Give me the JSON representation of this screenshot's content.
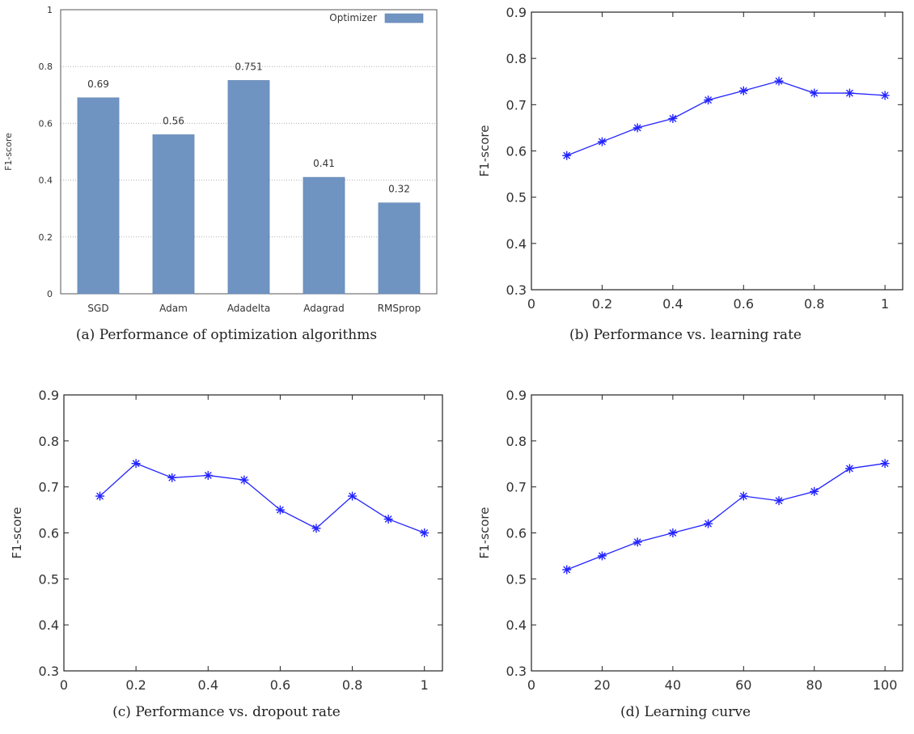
{
  "panels": [
    {
      "caption": "(a) Performance of optimization algorithms"
    },
    {
      "caption": "(b) Performance vs. learning rate"
    },
    {
      "caption": "(c) Performance vs. dropout rate"
    },
    {
      "caption": "(d) Learning curve"
    }
  ],
  "colors": {
    "bar": "#7094c2",
    "line": "#2323ff",
    "axis": "#222222",
    "grid": "#b0b0b0"
  },
  "chart_data": [
    {
      "type": "bar",
      "categories": [
        "SGD",
        "Adam",
        "Adadelta",
        "Adagrad",
        "RMSprop"
      ],
      "series": [
        {
          "name": "Optimizer",
          "values": [
            0.69,
            0.56,
            0.751,
            0.41,
            0.32
          ]
        }
      ],
      "data_labels": [
        "0.69",
        "0.56",
        "0.751",
        "0.41",
        "0.32"
      ],
      "ylabel": "F1-score",
      "xlabel": "",
      "ylim": [
        0,
        1
      ],
      "yticks": [
        "0",
        "0.2",
        "0.4",
        "0.6",
        "0.8",
        "1"
      ],
      "grid": "horizontal dotted",
      "legend": "top-right"
    },
    {
      "type": "line",
      "x": [
        0.1,
        0.2,
        0.3,
        0.4,
        0.5,
        0.6,
        0.7,
        0.8,
        0.9,
        1.0
      ],
      "series": [
        {
          "values": [
            0.59,
            0.62,
            0.65,
            0.67,
            0.71,
            0.73,
            0.751,
            0.725,
            0.725,
            0.72
          ]
        }
      ],
      "ylabel": "F1-score",
      "xlabel": "",
      "xlim": [
        0,
        1.05
      ],
      "ylim": [
        0.3,
        0.9
      ],
      "xticks": [
        "0",
        "0.2",
        "0.4",
        "0.6",
        "0.8",
        "1"
      ],
      "yticks": [
        "0.3",
        "0.4",
        "0.5",
        "0.6",
        "0.7",
        "0.8",
        "0.9"
      ],
      "grid": false,
      "marker": "asterisk"
    },
    {
      "type": "line",
      "x": [
        0.1,
        0.2,
        0.3,
        0.4,
        0.5,
        0.6,
        0.7,
        0.8,
        0.9,
        1.0
      ],
      "series": [
        {
          "values": [
            0.68,
            0.751,
            0.72,
            0.725,
            0.715,
            0.65,
            0.61,
            0.68,
            0.63,
            0.6
          ]
        }
      ],
      "ylabel": "F1-score",
      "xlabel": "",
      "xlim": [
        0,
        1.05
      ],
      "ylim": [
        0.3,
        0.9
      ],
      "xticks": [
        "0",
        "0.2",
        "0.4",
        "0.6",
        "0.8",
        "1"
      ],
      "yticks": [
        "0.3",
        "0.4",
        "0.5",
        "0.6",
        "0.7",
        "0.8",
        "0.9"
      ],
      "grid": false,
      "marker": "asterisk"
    },
    {
      "type": "line",
      "x": [
        10,
        20,
        30,
        40,
        50,
        60,
        70,
        80,
        90,
        100
      ],
      "series": [
        {
          "values": [
            0.52,
            0.55,
            0.58,
            0.6,
            0.62,
            0.68,
            0.67,
            0.69,
            0.74,
            0.751
          ]
        }
      ],
      "ylabel": "F1-score",
      "xlabel": "",
      "xlim": [
        0,
        105
      ],
      "ylim": [
        0.3,
        0.9
      ],
      "xticks": [
        "0",
        "20",
        "40",
        "60",
        "80",
        "100"
      ],
      "yticks": [
        "0.3",
        "0.4",
        "0.5",
        "0.6",
        "0.7",
        "0.8",
        "0.9"
      ],
      "grid": false,
      "marker": "asterisk"
    }
  ]
}
